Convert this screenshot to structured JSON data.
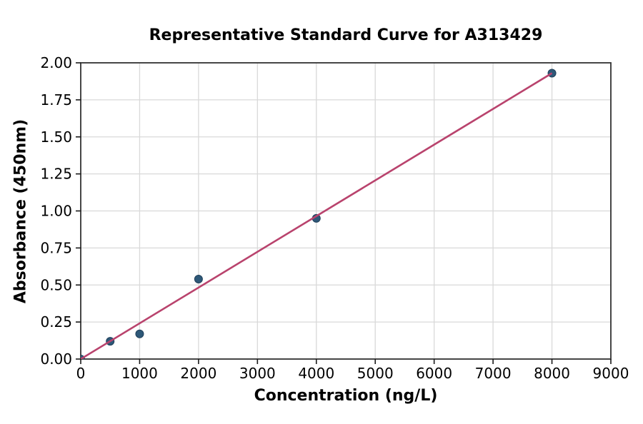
{
  "chart_data": {
    "type": "scatter",
    "title": "Representative Standard Curve for A313429",
    "xlabel": "Concentration (ng/L)",
    "ylabel": "Absorbance (450nm)",
    "points": [
      {
        "x": 0,
        "y": 0.0
      },
      {
        "x": 500,
        "y": 0.12
      },
      {
        "x": 1000,
        "y": 0.17
      },
      {
        "x": 2000,
        "y": 0.54
      },
      {
        "x": 4000,
        "y": 0.95
      },
      {
        "x": 8000,
        "y": 1.93
      }
    ],
    "fit_line": {
      "x_start": 0,
      "y_start": 0.0,
      "x_end": 8000,
      "y_end": 1.93
    },
    "xlim": [
      0,
      9000
    ],
    "ylim": [
      0,
      2.0
    ],
    "x_ticks": [
      0,
      1000,
      2000,
      3000,
      4000,
      5000,
      6000,
      7000,
      8000,
      9000
    ],
    "x_tick_labels": [
      "0",
      "1000",
      "2000",
      "3000",
      "4000",
      "5000",
      "6000",
      "7000",
      "8000",
      "9000"
    ],
    "y_ticks": [
      0.0,
      0.25,
      0.5,
      0.75,
      1.0,
      1.25,
      1.5,
      1.75,
      2.0
    ],
    "y_tick_labels": [
      "0.00",
      "0.25",
      "0.50",
      "0.75",
      "1.00",
      "1.25",
      "1.50",
      "1.75",
      "2.00"
    ],
    "grid": true,
    "legend": "none",
    "colors": {
      "marker": "#2e5878",
      "marker_edge": "#1f3f5a",
      "line": "#b9436d",
      "grid": "#d9d9d9",
      "spine": "#333333",
      "background": "#ffffff"
    }
  }
}
